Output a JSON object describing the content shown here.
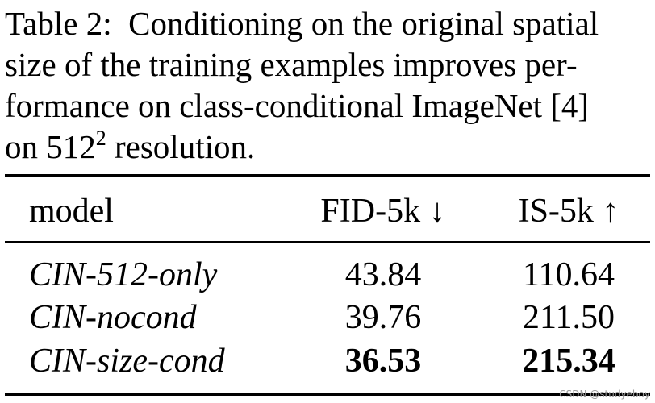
{
  "caption": {
    "lines": [
      "Table 2:  Conditioning on the original spatial",
      "size of the training examples improves per-",
      "formance on class-conditional ImageNet [4]"
    ],
    "last_line": {
      "before": "on 512",
      "sup": "2",
      "after": "resolution."
    }
  },
  "table": {
    "header": [
      "model",
      "FID-5k ↓",
      "IS-5k ↑"
    ],
    "rows": [
      [
        "CIN-512-only",
        "43.84",
        "110.64"
      ],
      [
        "CIN-nocond",
        "39.76",
        "211.50"
      ],
      [
        "CIN-size-cond",
        "36.53",
        "215.34"
      ]
    ]
  },
  "watermark": "CSDN @studyeboy"
}
